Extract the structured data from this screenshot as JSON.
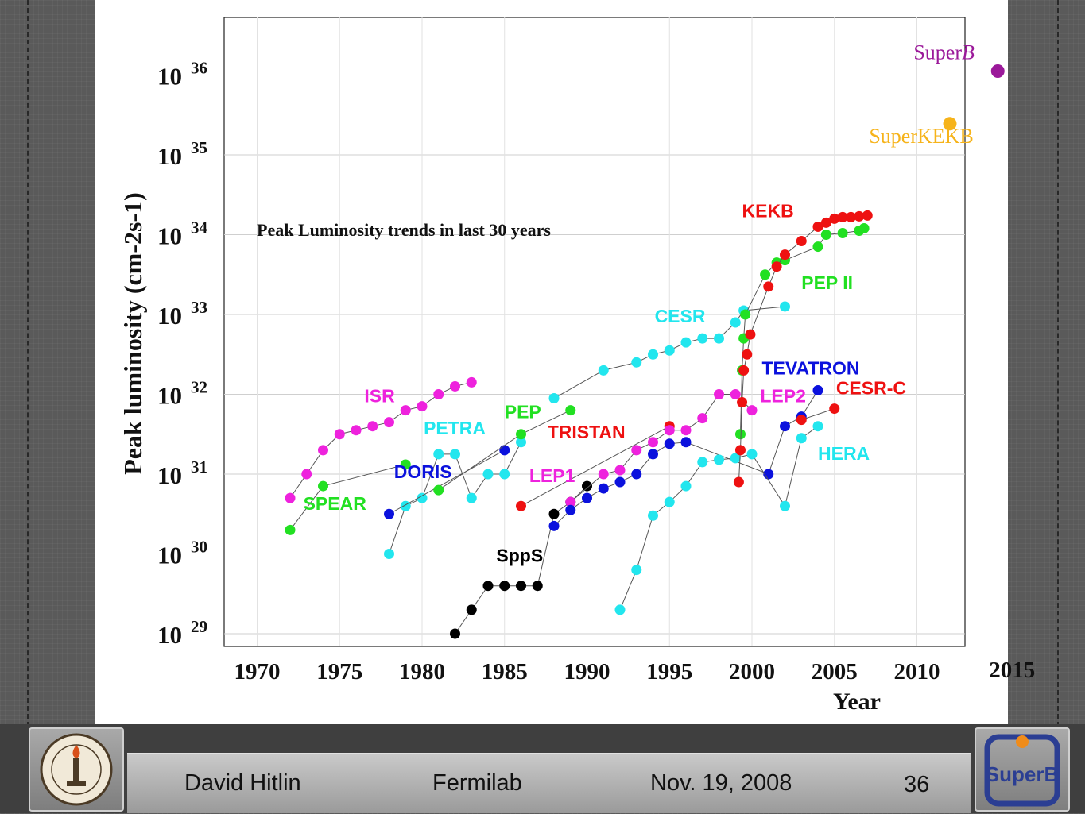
{
  "footer": {
    "author": "David Hitlin",
    "venue": "Fermilab",
    "date": "Nov. 19, 2008",
    "page": "36",
    "superb_logo_text": "SuperB"
  },
  "colors": {
    "magenta": "#ee22dd",
    "cyan": "#22e6ee",
    "green": "#22e022",
    "blue": "#0b11dd",
    "red": "#ee1111",
    "black": "#000000",
    "superb": "#9b199a",
    "superkekb": "#f6b31a"
  },
  "chart_data": {
    "type": "scatter",
    "title": "Peak Luminosity trends in last 30 years",
    "xlabel": "Year",
    "ylabel": "Peak luminosity (cm-2s-1)",
    "yscale": "log",
    "xlim": [
      1968,
      2015
    ],
    "ylim": [
      29,
      36.7
    ],
    "x_ticks": [
      "1970",
      "1975",
      "1980",
      "1985",
      "1990",
      "1995",
      "2000",
      "2005",
      "2010",
      "2015"
    ],
    "y_ticks": [
      {
        "base": "10",
        "exp": "29",
        "value": 29
      },
      {
        "base": "10",
        "exp": "30",
        "value": 30
      },
      {
        "base": "10",
        "exp": "31",
        "value": 31
      },
      {
        "base": "10",
        "exp": "32",
        "value": 32
      },
      {
        "base": "10",
        "exp": "33",
        "value": 33
      },
      {
        "base": "10",
        "exp": "34",
        "value": 34
      },
      {
        "base": "10",
        "exp": "35",
        "value": 35
      },
      {
        "base": "10",
        "exp": "36",
        "value": 36
      }
    ],
    "grid": true,
    "series": [
      {
        "name": "ISR",
        "color": "magenta",
        "label_at": [
          1976.5,
          31.9
        ],
        "points": [
          [
            1972,
            30.7
          ],
          [
            1973,
            31.0
          ],
          [
            1974,
            31.3
          ],
          [
            1975,
            31.5
          ],
          [
            1976,
            31.55
          ],
          [
            1977,
            31.6
          ],
          [
            1978,
            31.65
          ],
          [
            1979,
            31.8
          ],
          [
            1980,
            31.85
          ],
          [
            1981,
            32.0
          ],
          [
            1982,
            32.1
          ],
          [
            1983,
            32.15
          ]
        ]
      },
      {
        "name": "SPEAR",
        "color": "green",
        "label_at": [
          1972.8,
          30.55
        ],
        "points": [
          [
            1972,
            30.3
          ],
          [
            1974,
            30.85
          ],
          [
            1979,
            31.12
          ]
        ]
      },
      {
        "name": "PETRA",
        "color": "cyan",
        "label_at": [
          1980.1,
          31.5
        ],
        "points": [
          [
            1978,
            30.0
          ],
          [
            1979,
            30.6
          ],
          [
            1980,
            30.7
          ],
          [
            1981,
            31.25
          ],
          [
            1982,
            31.25
          ],
          [
            1983,
            30.7
          ],
          [
            1984,
            31.0
          ],
          [
            1985,
            31.0
          ],
          [
            1986,
            31.4
          ]
        ]
      },
      {
        "name": "DORIS",
        "color": "blue",
        "label_at": [
          1978.3,
          30.95
        ],
        "points": [
          [
            1978,
            30.5
          ],
          [
            1985,
            31.3
          ]
        ]
      },
      {
        "name": "PEP",
        "color": "green",
        "label_at": [
          1985,
          31.7
        ],
        "points": [
          [
            1981,
            30.8
          ],
          [
            1986,
            31.5
          ],
          [
            1989,
            31.8
          ]
        ]
      },
      {
        "name": "CESR",
        "color": "cyan",
        "label_at": [
          1994.1,
          32.9
        ],
        "points": [
          [
            1988,
            31.95
          ],
          [
            1991,
            32.3
          ],
          [
            1993,
            32.4
          ],
          [
            1994,
            32.5
          ],
          [
            1995,
            32.55
          ],
          [
            1996,
            32.65
          ],
          [
            1997,
            32.7
          ],
          [
            1998,
            32.7
          ],
          [
            1999,
            32.9
          ],
          [
            1999.5,
            33.05
          ],
          [
            2002,
            33.1
          ]
        ]
      },
      {
        "name": "SppS",
        "color": "black",
        "label_at": [
          1984.5,
          29.9
        ],
        "points": [
          [
            1982,
            29.0
          ],
          [
            1983,
            29.3
          ],
          [
            1984,
            29.6
          ],
          [
            1985,
            29.6
          ],
          [
            1986,
            29.6
          ],
          [
            1987,
            29.6
          ],
          [
            1988,
            30.5
          ],
          [
            1989,
            30.65
          ],
          [
            1990,
            30.85
          ]
        ]
      },
      {
        "name": "TRISTAN",
        "color": "red",
        "label_at": [
          1987.6,
          31.45
        ],
        "points": [
          [
            1986,
            30.6
          ],
          [
            1995,
            31.6
          ]
        ]
      },
      {
        "name": "LEP1",
        "color": "magenta",
        "label_at": [
          1986.5,
          30.9
        ],
        "points": [
          [
            1989,
            30.65
          ],
          [
            1991,
            31.0
          ],
          [
            1992,
            31.05
          ],
          [
            1993,
            31.3
          ],
          [
            1994,
            31.4
          ],
          [
            1995,
            31.55
          ],
          [
            1996,
            31.55
          ],
          [
            1997,
            31.7
          ],
          [
            1998,
            32.0
          ],
          [
            1999,
            32.0
          ],
          [
            2000,
            31.8
          ]
        ]
      },
      {
        "name": "LEP2",
        "color": "magenta",
        "label_at": [
          2000.5,
          31.9
        ],
        "points": []
      },
      {
        "name": "TEVATRON",
        "color": "blue",
        "label_at": [
          2000.6,
          32.25
        ],
        "points": [
          [
            1988,
            30.35
          ],
          [
            1989,
            30.55
          ],
          [
            1990,
            30.7
          ],
          [
            1991,
            30.82
          ],
          [
            1992,
            30.9
          ],
          [
            1993,
            31.0
          ],
          [
            1994,
            31.25
          ],
          [
            1995,
            31.38
          ],
          [
            1996,
            31.4
          ],
          [
            2001,
            31.0
          ],
          [
            2002,
            31.6
          ],
          [
            2003,
            31.72
          ],
          [
            2004,
            32.05
          ]
        ]
      },
      {
        "name": "HERA",
        "color": "cyan",
        "label_at": [
          2004,
          31.18
        ],
        "points": [
          [
            1992,
            29.3
          ],
          [
            1993,
            29.8
          ],
          [
            1994,
            30.48
          ],
          [
            1995,
            30.65
          ],
          [
            1996,
            30.85
          ],
          [
            1997,
            31.15
          ],
          [
            1998,
            31.18
          ],
          [
            1999,
            31.2
          ],
          [
            2000,
            31.25
          ],
          [
            2002,
            30.6
          ],
          [
            2003,
            31.45
          ],
          [
            2004,
            31.6
          ]
        ]
      },
      {
        "name": "CESR-C",
        "color": "red",
        "label_at": [
          2005.1,
          32.0
        ],
        "points": [
          [
            2003,
            31.68
          ],
          [
            2005,
            31.82
          ]
        ]
      },
      {
        "name": "PEP II",
        "color": "green",
        "label_at": [
          2003,
          33.32
        ],
        "points": [
          [
            1999.3,
            31.5
          ],
          [
            1999.4,
            32.3
          ],
          [
            1999.5,
            32.7
          ],
          [
            1999.6,
            33.0
          ],
          [
            2000.8,
            33.5
          ],
          [
            2001.5,
            33.65
          ],
          [
            2002,
            33.68
          ],
          [
            2004,
            33.85
          ],
          [
            2004.5,
            34.0
          ],
          [
            2005.5,
            34.02
          ],
          [
            2006.5,
            34.05
          ],
          [
            2006.8,
            34.08
          ]
        ]
      },
      {
        "name": "KEKB",
        "color": "red",
        "label_at": [
          1999.4,
          34.22
        ],
        "points": [
          [
            1999.2,
            30.9
          ],
          [
            1999.3,
            31.3
          ],
          [
            1999.4,
            31.9
          ],
          [
            1999.5,
            32.3
          ],
          [
            1999.7,
            32.5
          ],
          [
            1999.9,
            32.75
          ],
          [
            2001,
            33.35
          ],
          [
            2001.5,
            33.6
          ],
          [
            2002,
            33.75
          ],
          [
            2003,
            33.92
          ],
          [
            2004,
            34.1
          ],
          [
            2004.5,
            34.15
          ],
          [
            2005,
            34.2
          ],
          [
            2005.5,
            34.22
          ],
          [
            2006,
            34.22
          ],
          [
            2006.5,
            34.23
          ],
          [
            2007,
            34.24
          ]
        ]
      }
    ],
    "projections": [
      {
        "name": "SuperKEKB",
        "color": "superkekb",
        "x": 2012,
        "y": 35.39,
        "label_at": [
          2007.1,
          35.15
        ]
      },
      {
        "name": "SuperB",
        "color": "superb",
        "x": 2015,
        "y": 36.05,
        "label_at": [
          2009.8,
          36.2
        ],
        "label_main": "Super",
        "label_italic": "B"
      }
    ]
  }
}
